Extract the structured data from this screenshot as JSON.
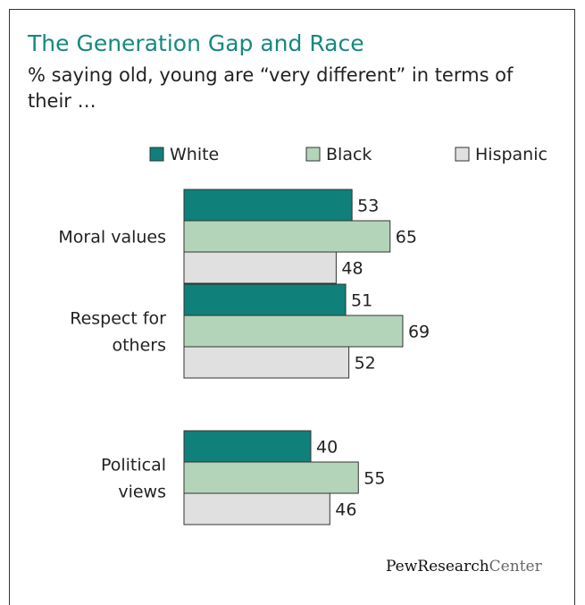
{
  "chart_data": {
    "type": "bar",
    "orientation": "horizontal",
    "title": "The Generation Gap and Race",
    "subtitle": "% saying old, young are “very different” in terms of their …",
    "categories": [
      [
        "Moral values"
      ],
      [
        "Respect for",
        "others"
      ],
      [
        "Political",
        "views"
      ]
    ],
    "series": [
      {
        "name": "White",
        "values": [
          53,
          51,
          40
        ],
        "color": "#0f807a"
      },
      {
        "name": "Black",
        "values": [
          65,
          69,
          55
        ],
        "color": "#b4d4b9"
      },
      {
        "name": "Hispanic",
        "values": [
          48,
          52,
          46
        ],
        "color": "#e0e0e0"
      }
    ],
    "legend_position": "top",
    "grid": false,
    "axis_visible": false,
    "xlim": [
      0,
      100
    ]
  },
  "branding": {
    "part1": "PewResearch",
    "part2": "Center"
  }
}
